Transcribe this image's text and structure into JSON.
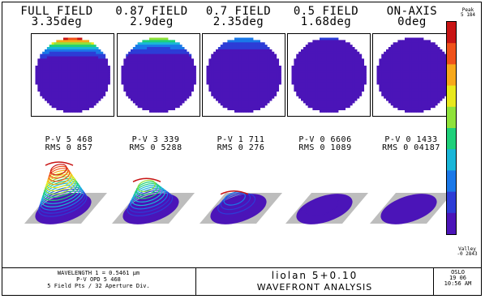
{
  "chart_data": {
    "type": "heatmap",
    "title": "WAVEFRONT ANALYSIS",
    "lens": "liolan 5+0.10",
    "fields": [
      {
        "name": "FULL FIELD",
        "angle": "3.35deg",
        "pv_label": "P-V 5 468",
        "rms_label": "RMS 0 857",
        "pv": 5.468,
        "rms": 0.857
      },
      {
        "name": "0.87 FIELD",
        "angle": "2.9deg",
        "pv_label": "P-V 3 339",
        "rms_label": "RMS 0 5288",
        "pv": 3.339,
        "rms": 0.5288
      },
      {
        "name": "0.7 FIELD",
        "angle": "2.35deg",
        "pv_label": "P-V 1 711",
        "rms_label": "RMS 0 276",
        "pv": 1.711,
        "rms": 0.276
      },
      {
        "name": "0.5 FIELD",
        "angle": "1.68deg",
        "pv_label": "P-V 0 6606",
        "rms_label": "RMS 0 1089",
        "pv": 0.6606,
        "rms": 0.1089
      },
      {
        "name": "ON-AXIS",
        "angle": "0deg",
        "pv_label": "P-V 0 1433",
        "rms_label": "RMS 0 04187",
        "pv": 0.1433,
        "rms": 0.04187
      }
    ],
    "scale": {
      "peak_label": "Peak",
      "peak_value": "5 184",
      "peak": 5.184,
      "valley_label": "Valley",
      "valley_value": "-0 2843",
      "valley": -0.2843
    },
    "colormap": [
      "#4b14b8",
      "#2d3cd6",
      "#1a78e8",
      "#19b6d8",
      "#1fd07a",
      "#8fe23a",
      "#e8e81c",
      "#f7a81a",
      "#f0521a",
      "#c81414"
    ]
  },
  "footer": {
    "wavelength": "WAVELENGTH 1 = 0.5461 µm",
    "pv_opd": "P-V OPD 5 468",
    "grid": "5 Field Pts / 32 Aperture Div.",
    "lens_name": "liolan 5+0.10",
    "analysis": "WAVEFRONT ANALYSIS",
    "software": "OSLO",
    "date": "19 06",
    "time": "10:56 AM"
  }
}
